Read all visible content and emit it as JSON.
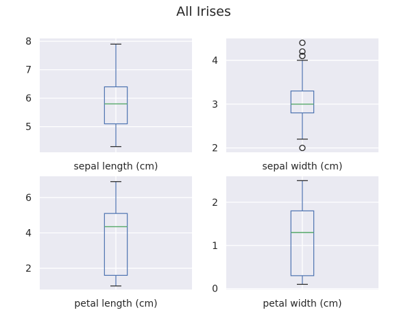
{
  "figure": {
    "title": "All Irises",
    "colors": {
      "background": "#ffffff",
      "axes_face": "#eaeaf2",
      "grid": "#ffffff",
      "box": "#4c72b0",
      "median": "#55a868",
      "text": "#262626"
    }
  },
  "chart_data": [
    {
      "type": "box",
      "category": "sepal length (cm)",
      "ylim": [
        4.1,
        8.1
      ],
      "yticks": [
        "5",
        "6",
        "7",
        "8"
      ],
      "ytick_values": [
        5,
        6,
        7,
        8
      ],
      "grid": true,
      "whisker_low": 4.3,
      "q1": 5.1,
      "median": 5.8,
      "q3": 6.4,
      "whisker_high": 7.9,
      "outliers": []
    },
    {
      "type": "box",
      "category": "sepal width (cm)",
      "ylim": [
        1.9,
        4.5
      ],
      "yticks": [
        "2",
        "3",
        "4"
      ],
      "ytick_values": [
        2,
        3,
        4
      ],
      "grid": true,
      "whisker_low": 2.2,
      "q1": 2.8,
      "median": 3.0,
      "q3": 3.3,
      "whisker_high": 4.0,
      "outliers": [
        2.0,
        4.1,
        4.2,
        4.4
      ]
    },
    {
      "type": "box",
      "category": "petal length (cm)",
      "ylim": [
        0.8,
        7.2
      ],
      "yticks": [
        "2",
        "4",
        "6"
      ],
      "ytick_values": [
        2,
        4,
        6
      ],
      "grid": true,
      "whisker_low": 1.0,
      "q1": 1.6,
      "median": 4.35,
      "q3": 5.1,
      "whisker_high": 6.9,
      "outliers": []
    },
    {
      "type": "box",
      "category": "petal width (cm)",
      "ylim": [
        -0.02,
        2.6
      ],
      "yticks": [
        "0",
        "1",
        "2"
      ],
      "ytick_values": [
        0,
        1,
        2
      ],
      "grid": true,
      "whisker_low": 0.1,
      "q1": 0.3,
      "median": 1.3,
      "q3": 1.8,
      "whisker_high": 2.5,
      "outliers": []
    }
  ]
}
